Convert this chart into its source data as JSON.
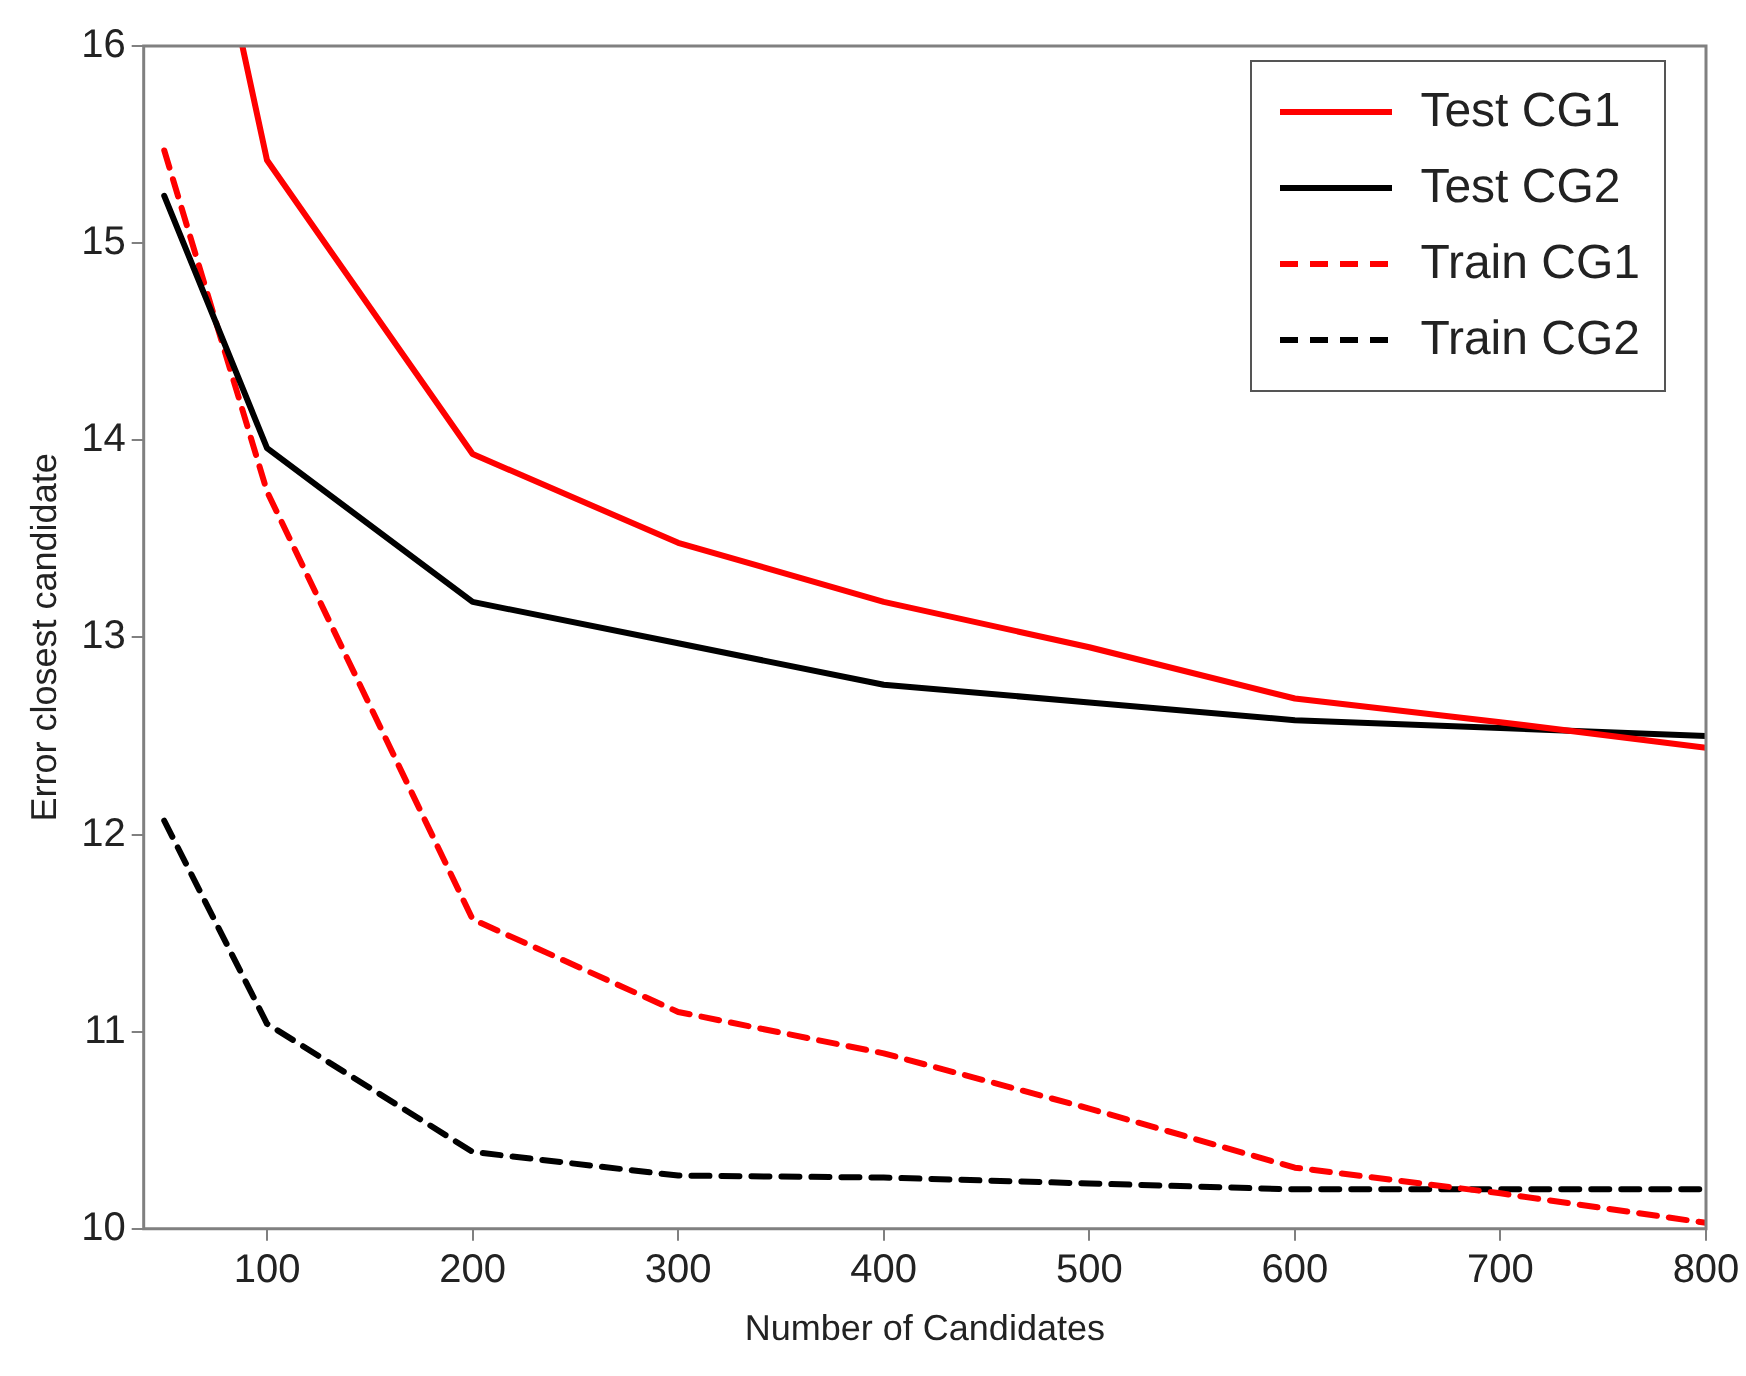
{
  "chart_data": {
    "type": "line",
    "xlabel": "Number of Candidates",
    "ylabel": "Error closest candidate",
    "x": [
      50,
      100,
      200,
      300,
      400,
      500,
      600,
      700,
      800
    ],
    "xlim": [
      40,
      800
    ],
    "xticks": [
      100,
      200,
      300,
      400,
      500,
      600,
      700,
      800
    ],
    "ylim": [
      10,
      16
    ],
    "yticks": [
      10,
      11,
      12,
      13,
      14,
      15,
      16
    ],
    "grid": false,
    "legend": "top right",
    "marker": "none",
    "series": [
      {
        "name": "Test CG1",
        "color": "#ff0000",
        "line_style": "solid",
        "x": [
          88,
          100,
          200,
          300,
          400,
          500,
          600,
          700,
          800
        ],
        "values": [
          16,
          15.42,
          13.93,
          13.48,
          13.18,
          12.95,
          12.69,
          12.57,
          12.44
        ]
      },
      {
        "name": "Test CG2",
        "color": "#000000",
        "line_style": "solid",
        "values": [
          15.24,
          13.96,
          13.18,
          12.97,
          12.76,
          12.67,
          12.58,
          12.54,
          12.5
        ]
      },
      {
        "name": "Train CG1",
        "color": "#ff0000",
        "line_style": "dashed",
        "values": [
          15.47,
          13.74,
          11.57,
          11.1,
          10.89,
          10.61,
          10.31,
          10.18,
          10.03
        ]
      },
      {
        "name": "Train CG2",
        "color": "#000000",
        "line_style": "dashed",
        "values": [
          12.07,
          11.04,
          10.39,
          10.27,
          10.26,
          10.23,
          10.2,
          10.2,
          10.2
        ]
      }
    ]
  }
}
